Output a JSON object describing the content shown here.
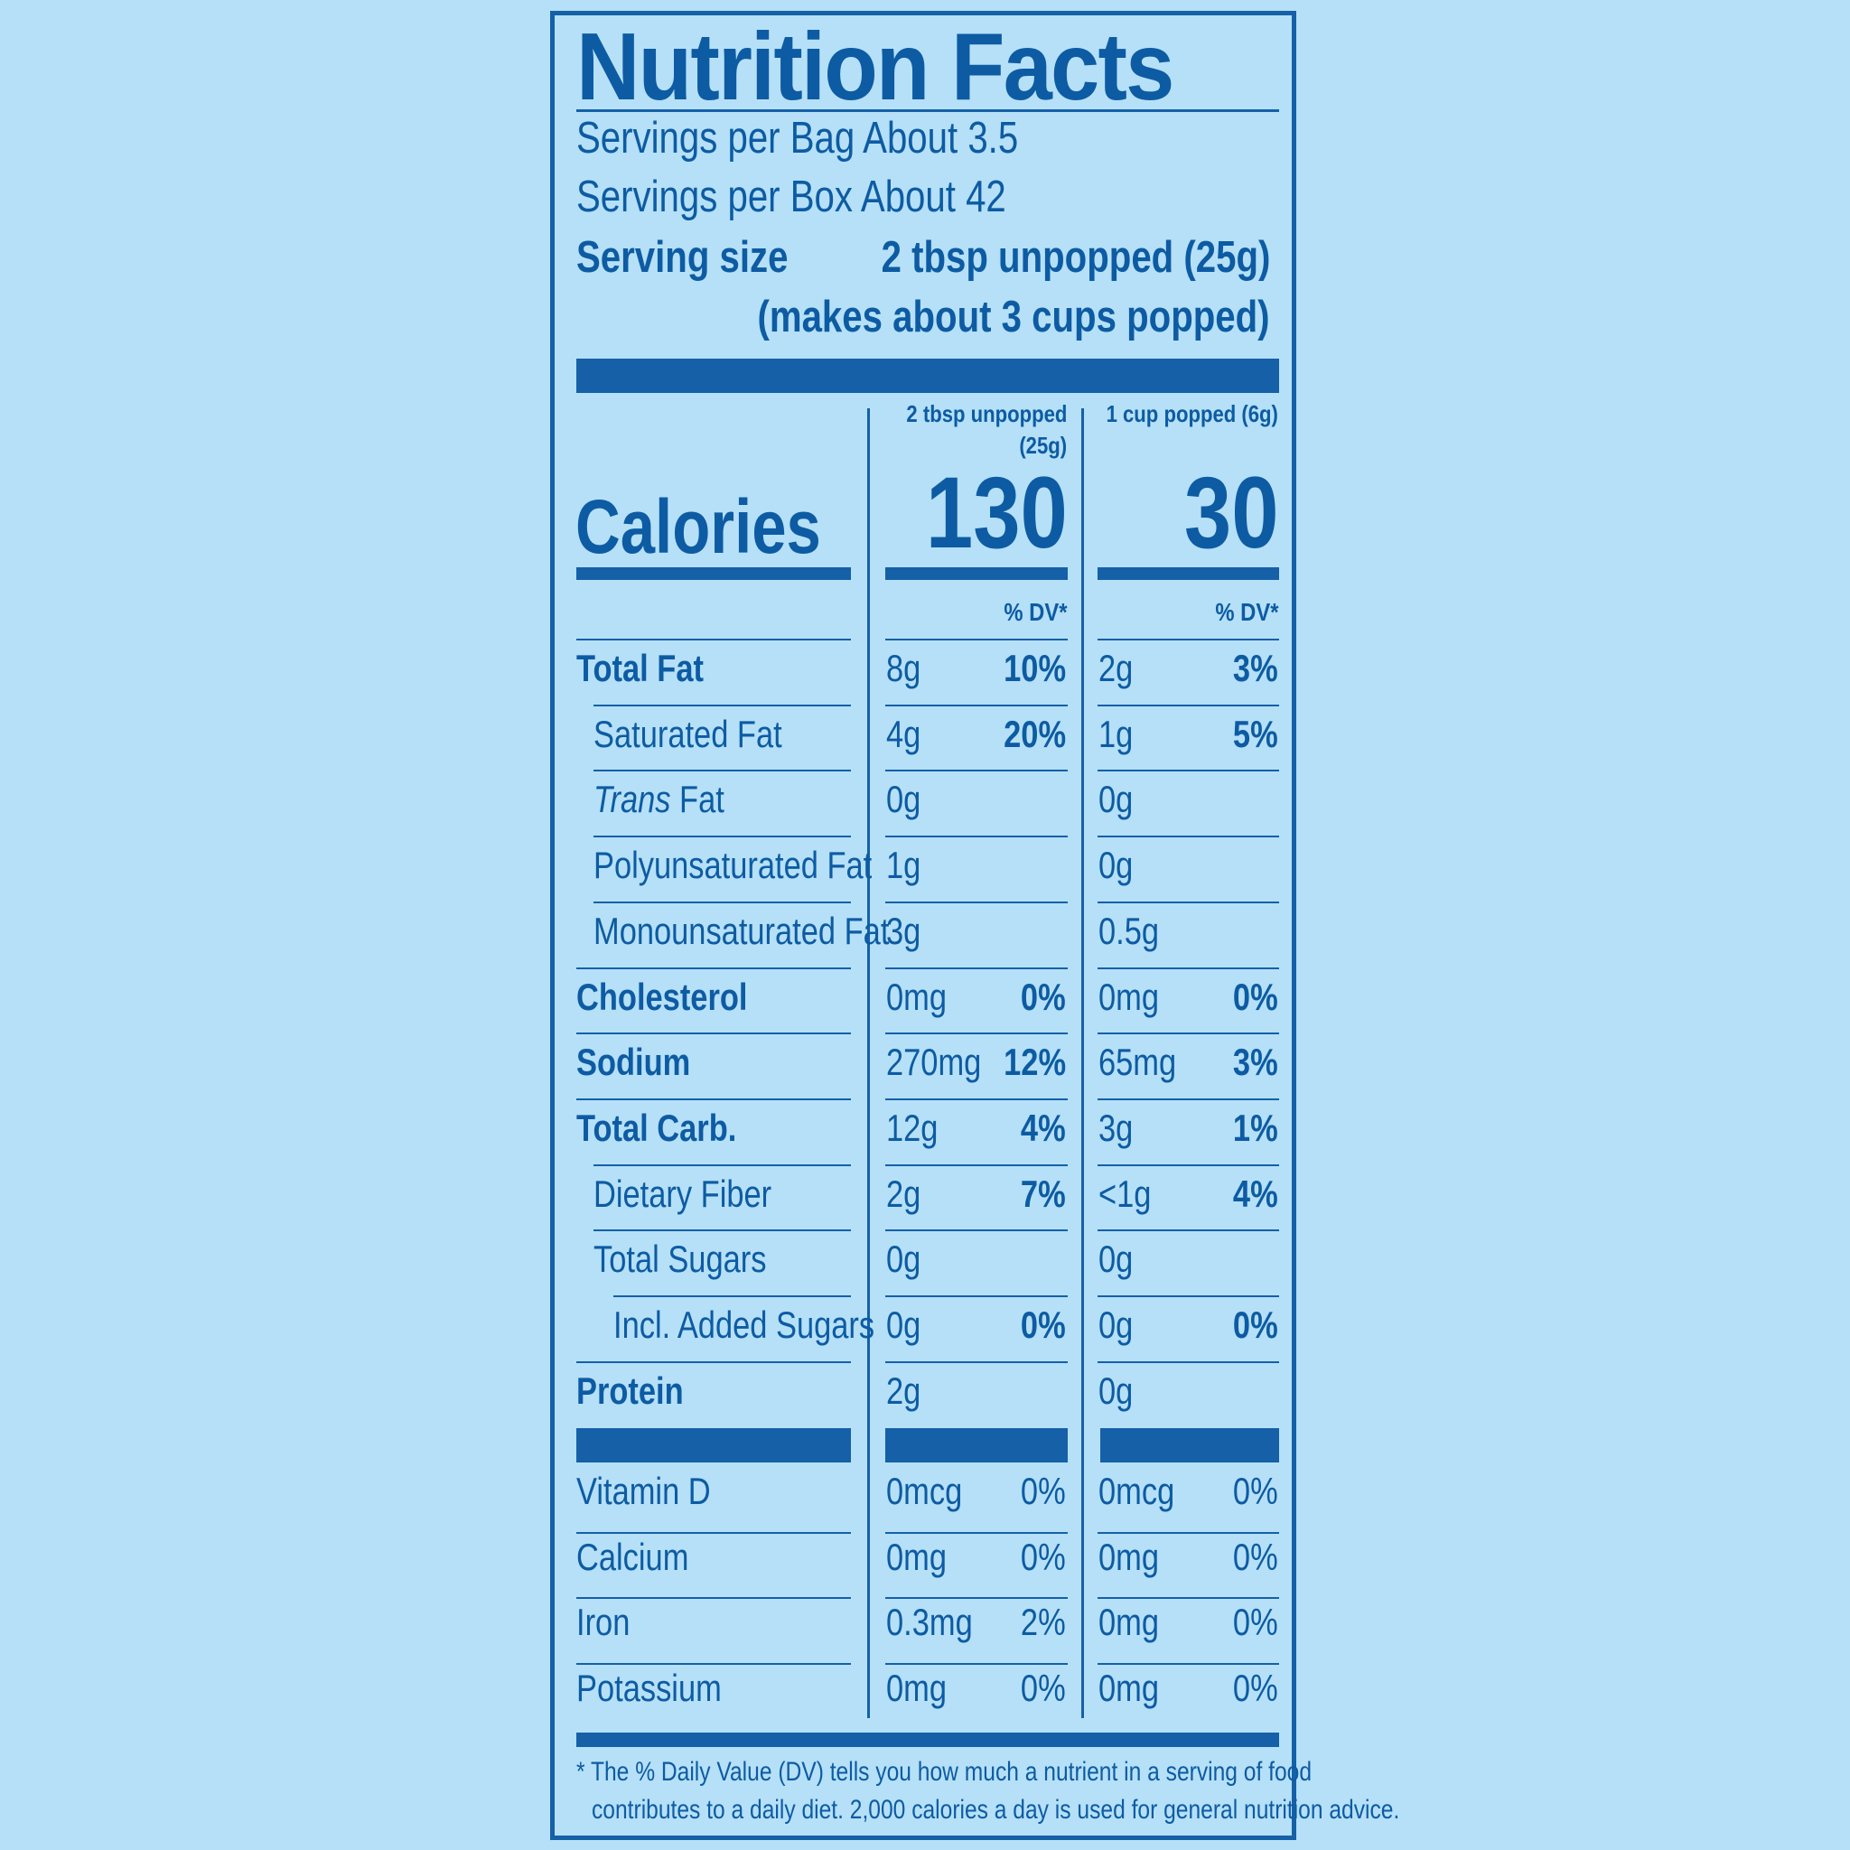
{
  "title": "Nutrition Facts",
  "servings_per_bag": "Servings per Bag About 3.5",
  "servings_per_box": "Servings per Box About 42",
  "serving_size_label": "Serving size",
  "serving_size_value": "2 tbsp unpopped (25g)",
  "serving_size_note": "(makes about 3 cups popped)",
  "columns": [
    {
      "heading_line1": "2 tbsp unpopped",
      "heading_line2": "(25g)",
      "calories": "130",
      "dv_heading": "% DV*"
    },
    {
      "heading_line1": "1 cup popped (6g)",
      "heading_line2": "",
      "calories": "30",
      "dv_heading": "% DV*"
    }
  ],
  "calories_label": "Calories",
  "nutrients": [
    {
      "label": "Total Fat",
      "bold": true,
      "indent": 0,
      "c1_amount": "8g",
      "c1_dv": "10%",
      "c2_amount": "2g",
      "c2_dv": "3%"
    },
    {
      "label": "Saturated Fat",
      "bold": false,
      "indent": 1,
      "c1_amount": "4g",
      "c1_dv": "20%",
      "c2_amount": "1g",
      "c2_dv": "5%"
    },
    {
      "label_italic": "Trans",
      "label": " Fat",
      "bold": false,
      "indent": 1,
      "c1_amount": "0g",
      "c1_dv": "",
      "c2_amount": "0g",
      "c2_dv": ""
    },
    {
      "label": "Polyunsaturated Fat",
      "bold": false,
      "indent": 1,
      "c1_amount": "1g",
      "c1_dv": "",
      "c2_amount": "0g",
      "c2_dv": ""
    },
    {
      "label": "Monounsaturated Fat",
      "bold": false,
      "indent": 1,
      "c1_amount": "3g",
      "c1_dv": "",
      "c2_amount": "0.5g",
      "c2_dv": ""
    },
    {
      "label": "Cholesterol",
      "bold": true,
      "indent": 0,
      "c1_amount": "0mg",
      "c1_dv": "0%",
      "c2_amount": "0mg",
      "c2_dv": "0%"
    },
    {
      "label": "Sodium",
      "bold": true,
      "indent": 0,
      "c1_amount": "270mg",
      "c1_dv": "12%",
      "c2_amount": "65mg",
      "c2_dv": "3%"
    },
    {
      "label": "Total Carb.",
      "bold": true,
      "indent": 0,
      "c1_amount": "12g",
      "c1_dv": "4%",
      "c2_amount": "3g",
      "c2_dv": "1%"
    },
    {
      "label": "Dietary Fiber",
      "bold": false,
      "indent": 1,
      "c1_amount": "2g",
      "c1_dv": "7%",
      "c2_amount": "<1g",
      "c2_dv": "4%"
    },
    {
      "label": "Total Sugars",
      "bold": false,
      "indent": 1,
      "c1_amount": "0g",
      "c1_dv": "",
      "c2_amount": "0g",
      "c2_dv": ""
    },
    {
      "label": "Incl. Added Sugars",
      "bold": false,
      "indent": 2,
      "c1_amount": "0g",
      "c1_dv": "0%",
      "c2_amount": "0g",
      "c2_dv": "0%"
    },
    {
      "label": "Protein",
      "bold": true,
      "indent": 0,
      "c1_amount": "2g",
      "c1_dv": "",
      "c2_amount": "0g",
      "c2_dv": ""
    }
  ],
  "vitamins": [
    {
      "label": "Vitamin D",
      "c1_amount": "0mcg",
      "c1_dv": "0%",
      "c2_amount": "0mcg",
      "c2_dv": "0%"
    },
    {
      "label": "Calcium",
      "c1_amount": "0mg",
      "c1_dv": "0%",
      "c2_amount": "0mg",
      "c2_dv": "0%"
    },
    {
      "label": "Iron",
      "c1_amount": "0.3mg",
      "c1_dv": "2%",
      "c2_amount": "0mg",
      "c2_dv": "0%"
    },
    {
      "label": "Potassium",
      "c1_amount": "0mg",
      "c1_dv": "0%",
      "c2_amount": "0mg",
      "c2_dv": "0%"
    }
  ],
  "footnote_line1": "* The % Daily Value (DV) tells you how much a nutrient in a serving of food",
  "footnote_line2": "contributes to a daily diet. 2,000 calories a day is used for general nutrition advice.",
  "colors": {
    "background": "#b5e0f7",
    "ink": "#0d5ba3",
    "rule": "#1560a7"
  }
}
